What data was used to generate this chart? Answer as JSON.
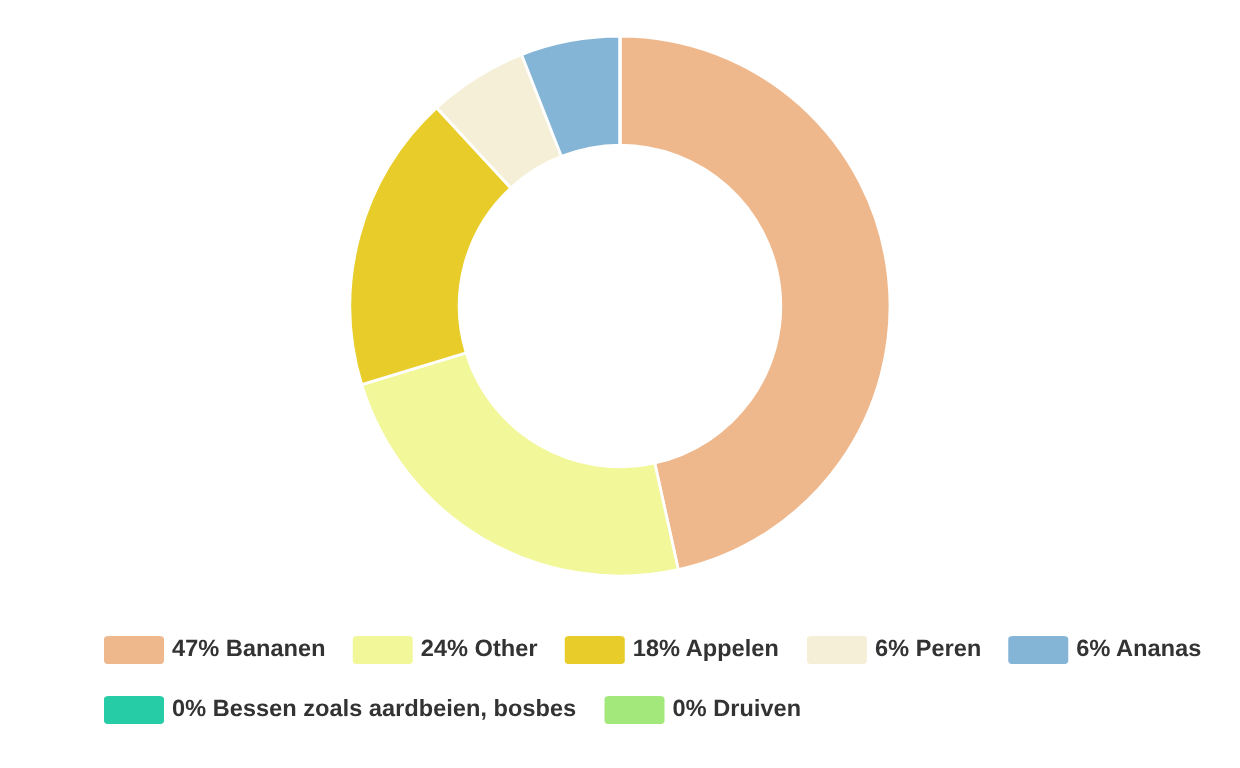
{
  "chart_data": {
    "type": "donut",
    "categories": [
      "Bananen",
      "Other",
      "Appelen",
      "Peren",
      "Ananas",
      "Bessen zoals aardbeien, bosbes",
      "Druiven"
    ],
    "values": [
      47,
      24,
      18,
      6,
      6,
      0,
      0
    ],
    "value_labels": [
      "47%",
      "24%",
      "18%",
      "6%",
      "6%",
      "0%",
      "0%"
    ],
    "colors": [
      "#efb88c",
      "#f2f79a",
      "#e8cd2a",
      "#f4efd6",
      "#85b5d6",
      "#26cca6",
      "#a3e87a"
    ],
    "legend": "bottom"
  }
}
